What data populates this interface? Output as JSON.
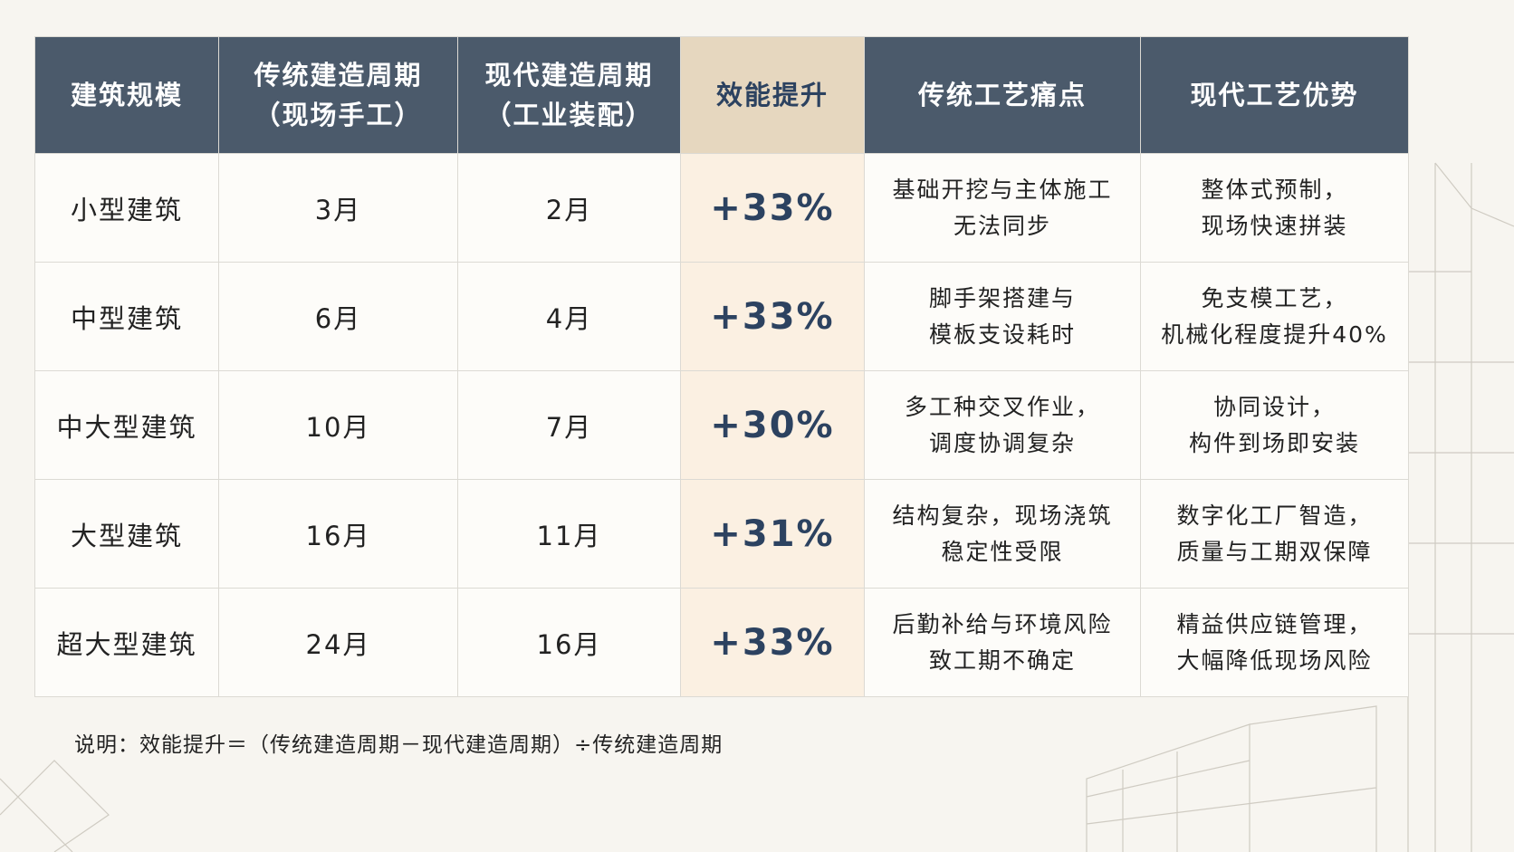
{
  "table": {
    "header": [
      [
        "建筑规模"
      ],
      [
        "传统建造周期",
        "（现场手工）"
      ],
      [
        "现代建造周期",
        "（工业装配）"
      ],
      [
        "效能提升"
      ],
      [
        "传统工艺痛点"
      ],
      [
        "现代工艺优势"
      ]
    ],
    "rows": [
      [
        [
          "小型建筑"
        ],
        [
          "3月"
        ],
        [
          "2月"
        ],
        [
          "+33%"
        ],
        [
          "基础开挖与主体施工",
          "无法同步"
        ],
        [
          "整体式预制，",
          "现场快速拼装"
        ]
      ],
      [
        [
          "中型建筑"
        ],
        [
          "6月"
        ],
        [
          "4月"
        ],
        [
          "+33%"
        ],
        [
          "脚手架搭建与",
          "模板支设耗时"
        ],
        [
          "免支模工艺，",
          "机械化程度提升40%"
        ]
      ],
      [
        [
          "中大型建筑"
        ],
        [
          "10月"
        ],
        [
          "7月"
        ],
        [
          "+30%"
        ],
        [
          "多工种交叉作业，",
          "调度协调复杂"
        ],
        [
          "协同设计，",
          "构件到场即安装"
        ]
      ],
      [
        [
          "大型建筑"
        ],
        [
          "16月"
        ],
        [
          "11月"
        ],
        [
          "+31%"
        ],
        [
          "结构复杂，现场浇筑",
          "稳定性受限"
        ],
        [
          "数字化工厂智造，",
          "质量与工期双保障"
        ]
      ],
      [
        [
          "超大型建筑"
        ],
        [
          "24月"
        ],
        [
          "16月"
        ],
        [
          "+33%"
        ],
        [
          "后勤补给与环境风险",
          "致工期不确定"
        ],
        [
          "精益供应链管理，",
          "大幅降低现场风险"
        ]
      ]
    ]
  },
  "note": "说明：效能提升＝（传统建造周期－现代建造周期）÷传统建造周期"
}
